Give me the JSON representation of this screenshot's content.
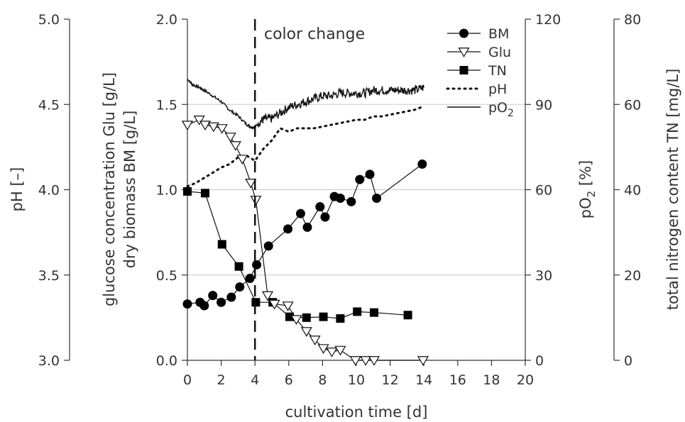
{
  "chart_data": {
    "type": "line",
    "xlabel": "cultivation time [d]",
    "x_ticks": [
      "0",
      "2",
      "4",
      "6",
      "8",
      "10",
      "12",
      "14",
      "16",
      "18",
      "20"
    ],
    "xlim": [
      0,
      20
    ],
    "axes": {
      "ph": {
        "label": "pH [–]",
        "lim": [
          3.0,
          5.0
        ],
        "ticks": [
          "3.0",
          "3.5",
          "4.0",
          "4.5",
          "5.0"
        ]
      },
      "main": {
        "label_line1": "glucose concentration Glu [g/L]",
        "label_line2": "dry biomass BM [g/L]",
        "lim": [
          0,
          2.0
        ],
        "ticks": [
          "0.0",
          "0.5",
          "1.0",
          "1.5",
          "2.0"
        ]
      },
      "po2": {
        "label_main": "pO",
        "label_sub": "2",
        "label_rest": " [%]",
        "lim": [
          0,
          120
        ],
        "ticks": [
          "0",
          "30",
          "60",
          "90",
          "120"
        ]
      },
      "tn": {
        "label": "total nitrogen content TN [mg/L]",
        "lim": [
          0,
          80
        ],
        "ticks": [
          "0",
          "20",
          "40",
          "60",
          "80"
        ]
      }
    },
    "grid": "horizontal",
    "annotation": {
      "text": "color change",
      "x": 4
    },
    "legend": {
      "position": "top-right",
      "entries": [
        {
          "label": "BM",
          "marker": "filled-circle",
          "line": "solid"
        },
        {
          "label": "Glu",
          "marker": "open-triangle-down",
          "line": "solid"
        },
        {
          "label": "TN",
          "marker": "filled-square",
          "line": "solid"
        },
        {
          "label": "pH",
          "marker": "none",
          "line": "dotted"
        },
        {
          "label_main": "pO",
          "label_sub": "2",
          "marker": "none",
          "line": "thin"
        }
      ]
    },
    "series": [
      {
        "name": "BM",
        "axis": "main",
        "x": [
          0,
          0.75,
          1,
          1.5,
          2,
          2.6,
          3.1,
          3.7,
          4.1,
          4.8,
          5.95,
          6.7,
          7.1,
          7.85,
          8.15,
          8.7,
          9.05,
          9.7,
          10.2,
          10.8,
          11.2,
          13.9
        ],
        "y": [
          0.33,
          0.34,
          0.32,
          0.38,
          0.34,
          0.37,
          0.43,
          0.48,
          0.56,
          0.67,
          0.77,
          0.86,
          0.78,
          0.9,
          0.84,
          0.96,
          0.95,
          0.93,
          1.06,
          1.09,
          0.95,
          1.15
        ]
      },
      {
        "name": "Glu",
        "axis": "main",
        "x": [
          0,
          0.7,
          1.05,
          1.55,
          2.05,
          2.55,
          2.85,
          3.25,
          3.75,
          4.05,
          4.75,
          5.15,
          5.95,
          6.45,
          7.05,
          7.55,
          8.05,
          8.55,
          9.05,
          9.95,
          10.55,
          11.05,
          13.95
        ],
        "y": [
          1.38,
          1.41,
          1.38,
          1.37,
          1.36,
          1.31,
          1.26,
          1.18,
          1.04,
          0.94,
          0.38,
          0.33,
          0.32,
          0.24,
          0.17,
          0.12,
          0.07,
          0.05,
          0.06,
          0,
          0,
          0,
          0
        ]
      },
      {
        "name": "TN",
        "axis": "tn",
        "x": [
          0,
          1.05,
          2.05,
          3.05,
          4.05,
          5.05,
          6.05,
          7.05,
          8.05,
          9.05,
          10.05,
          11.05,
          13.05
        ],
        "y": [
          39.6,
          39.2,
          27.2,
          22,
          13.6,
          13.6,
          10.2,
          10,
          10.2,
          9.8,
          11.4,
          11.2,
          10.6
        ]
      },
      {
        "name": "pH",
        "axis": "ph",
        "x": [
          0,
          0.5,
          1,
          1.5,
          2,
          2.5,
          3,
          3.5,
          4,
          4.5,
          5,
          5.5,
          6,
          6.5,
          7,
          7.5,
          8,
          8.5,
          9,
          9.5,
          10,
          10.5,
          11,
          11.5,
          12,
          12.5,
          13,
          13.5,
          14
        ],
        "y": [
          4.02,
          4.04,
          4.07,
          4.1,
          4.13,
          4.15,
          4.19,
          4.2,
          4.17,
          4.24,
          4.29,
          4.36,
          4.34,
          4.36,
          4.36,
          4.36,
          4.37,
          4.38,
          4.39,
          4.4,
          4.41,
          4.41,
          4.43,
          4.43,
          4.44,
          4.45,
          4.46,
          4.47,
          4.49
        ]
      },
      {
        "name": "pO2",
        "axis": "po2",
        "x": [
          0,
          0.3,
          0.7,
          1,
          1.5,
          2,
          2.5,
          3,
          3.5,
          3.8,
          4,
          4.3,
          4.6,
          5,
          5.5,
          6,
          6.5,
          7,
          7.5,
          8,
          8.5,
          9,
          9.5,
          10,
          10.5,
          11,
          11.5,
          12,
          12.5,
          13,
          13.5,
          14
        ],
        "y": [
          99,
          97,
          96,
          95,
          93,
          91,
          88,
          86,
          83,
          82,
          82,
          84,
          85,
          85,
          87,
          89,
          90,
          91,
          92,
          93,
          93,
          94,
          94,
          94,
          94,
          95,
          95,
          95,
          95,
          95,
          95,
          96
        ]
      }
    ]
  }
}
